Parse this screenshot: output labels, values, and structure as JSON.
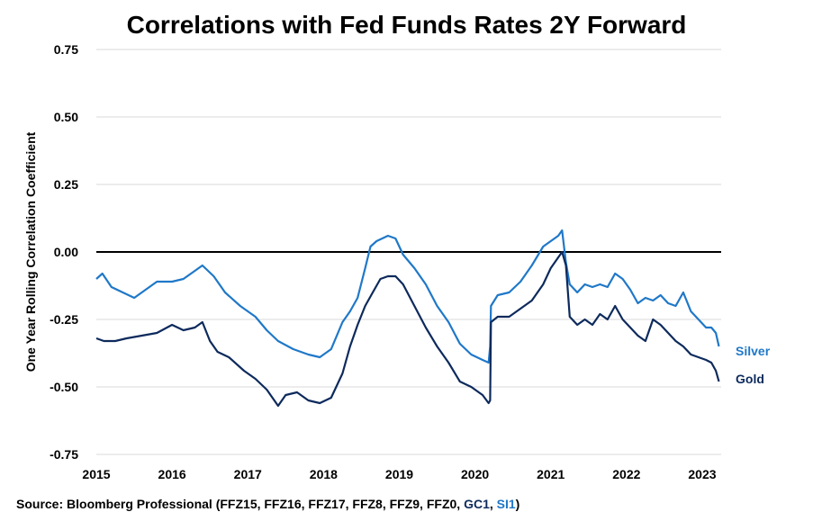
{
  "chart_data": {
    "type": "line",
    "title": "Correlations with Fed Funds Rates 2Y Forward",
    "ylabel": "One Year Rolling Correlation Coefficient",
    "xlabel": "",
    "ylim": [
      -0.75,
      0.75
    ],
    "xlim": [
      2015,
      2023.25
    ],
    "yticks": [
      "0.75",
      "0.50",
      "0.25",
      "0.00",
      "-0.25",
      "-0.50",
      "-0.75"
    ],
    "xticks": [
      "2015",
      "2016",
      "2017",
      "2018",
      "2019",
      "2020",
      "2021",
      "2022",
      "2023"
    ],
    "grid": true,
    "series": [
      {
        "name": "Silver",
        "color": "#1f78c8",
        "x": [
          2015.0,
          2015.08,
          2015.2,
          2015.35,
          2015.5,
          2015.65,
          2015.8,
          2016.0,
          2016.15,
          2016.3,
          2016.4,
          2016.55,
          2016.7,
          2016.9,
          2017.1,
          2017.25,
          2017.4,
          2017.6,
          2017.8,
          2017.95,
          2018.1,
          2018.25,
          2018.35,
          2018.45,
          2018.55,
          2018.62,
          2018.7,
          2018.85,
          2018.95,
          2019.05,
          2019.2,
          2019.35,
          2019.5,
          2019.65,
          2019.8,
          2019.95,
          2020.1,
          2020.18,
          2020.2,
          2020.21,
          2020.3,
          2020.45,
          2020.6,
          2020.75,
          2020.9,
          2021.0,
          2021.1,
          2021.15,
          2021.2,
          2021.25,
          2021.35,
          2021.45,
          2021.55,
          2021.65,
          2021.75,
          2021.85,
          2021.95,
          2022.05,
          2022.15,
          2022.25,
          2022.35,
          2022.45,
          2022.55,
          2022.65,
          2022.75,
          2022.85,
          2022.95,
          2023.05,
          2023.12,
          2023.18,
          2023.22
        ],
        "values": [
          -0.1,
          -0.08,
          -0.13,
          -0.15,
          -0.17,
          -0.14,
          -0.11,
          -0.11,
          -0.1,
          -0.07,
          -0.05,
          -0.09,
          -0.15,
          -0.2,
          -0.24,
          -0.29,
          -0.33,
          -0.36,
          -0.38,
          -0.39,
          -0.36,
          -0.26,
          -0.22,
          -0.17,
          -0.06,
          0.02,
          0.04,
          0.06,
          0.05,
          -0.01,
          -0.06,
          -0.12,
          -0.2,
          -0.26,
          -0.34,
          -0.38,
          -0.4,
          -0.41,
          -0.35,
          -0.2,
          -0.16,
          -0.15,
          -0.11,
          -0.05,
          0.02,
          0.04,
          0.06,
          0.08,
          -0.04,
          -0.12,
          -0.15,
          -0.12,
          -0.13,
          -0.12,
          -0.13,
          -0.08,
          -0.1,
          -0.14,
          -0.19,
          -0.17,
          -0.18,
          -0.16,
          -0.19,
          -0.2,
          -0.15,
          -0.22,
          -0.25,
          -0.28,
          -0.28,
          -0.3,
          -0.35
        ]
      },
      {
        "name": "Gold",
        "color": "#0d2a5c",
        "x": [
          2015.0,
          2015.1,
          2015.25,
          2015.4,
          2015.6,
          2015.8,
          2016.0,
          2016.15,
          2016.3,
          2016.4,
          2016.5,
          2016.6,
          2016.75,
          2016.95,
          2017.1,
          2017.25,
          2017.4,
          2017.5,
          2017.65,
          2017.8,
          2017.95,
          2018.1,
          2018.25,
          2018.35,
          2018.45,
          2018.55,
          2018.65,
          2018.75,
          2018.85,
          2018.95,
          2019.05,
          2019.2,
          2019.35,
          2019.5,
          2019.65,
          2019.8,
          2019.95,
          2020.1,
          2020.18,
          2020.2,
          2020.21,
          2020.3,
          2020.45,
          2020.6,
          2020.75,
          2020.9,
          2021.0,
          2021.1,
          2021.15,
          2021.2,
          2021.25,
          2021.35,
          2021.45,
          2021.55,
          2021.65,
          2021.75,
          2021.85,
          2021.95,
          2022.05,
          2022.15,
          2022.25,
          2022.35,
          2022.45,
          2022.55,
          2022.65,
          2022.75,
          2022.85,
          2022.95,
          2023.05,
          2023.12,
          2023.18,
          2023.22
        ],
        "values": [
          -0.32,
          -0.33,
          -0.33,
          -0.32,
          -0.31,
          -0.3,
          -0.27,
          -0.29,
          -0.28,
          -0.26,
          -0.33,
          -0.37,
          -0.39,
          -0.44,
          -0.47,
          -0.51,
          -0.57,
          -0.53,
          -0.52,
          -0.55,
          -0.56,
          -0.54,
          -0.45,
          -0.35,
          -0.27,
          -0.2,
          -0.15,
          -0.1,
          -0.09,
          -0.09,
          -0.12,
          -0.2,
          -0.28,
          -0.35,
          -0.41,
          -0.48,
          -0.5,
          -0.53,
          -0.56,
          -0.55,
          -0.26,
          -0.24,
          -0.24,
          -0.21,
          -0.18,
          -0.12,
          -0.06,
          -0.02,
          0.0,
          -0.05,
          -0.24,
          -0.27,
          -0.25,
          -0.27,
          -0.23,
          -0.25,
          -0.2,
          -0.25,
          -0.28,
          -0.31,
          -0.33,
          -0.25,
          -0.27,
          -0.3,
          -0.33,
          -0.35,
          -0.38,
          -0.39,
          -0.4,
          -0.41,
          -0.44,
          -0.48
        ]
      }
    ]
  },
  "source": {
    "prefix": "Source:  Bloomberg  Professional  (FFZ15, FFZ16, FFZ17, FFZ8, FFZ9, FFZ0, ",
    "gc1": "GC1",
    "sep": ", ",
    "si1": "SI1",
    "suffix": ")"
  }
}
